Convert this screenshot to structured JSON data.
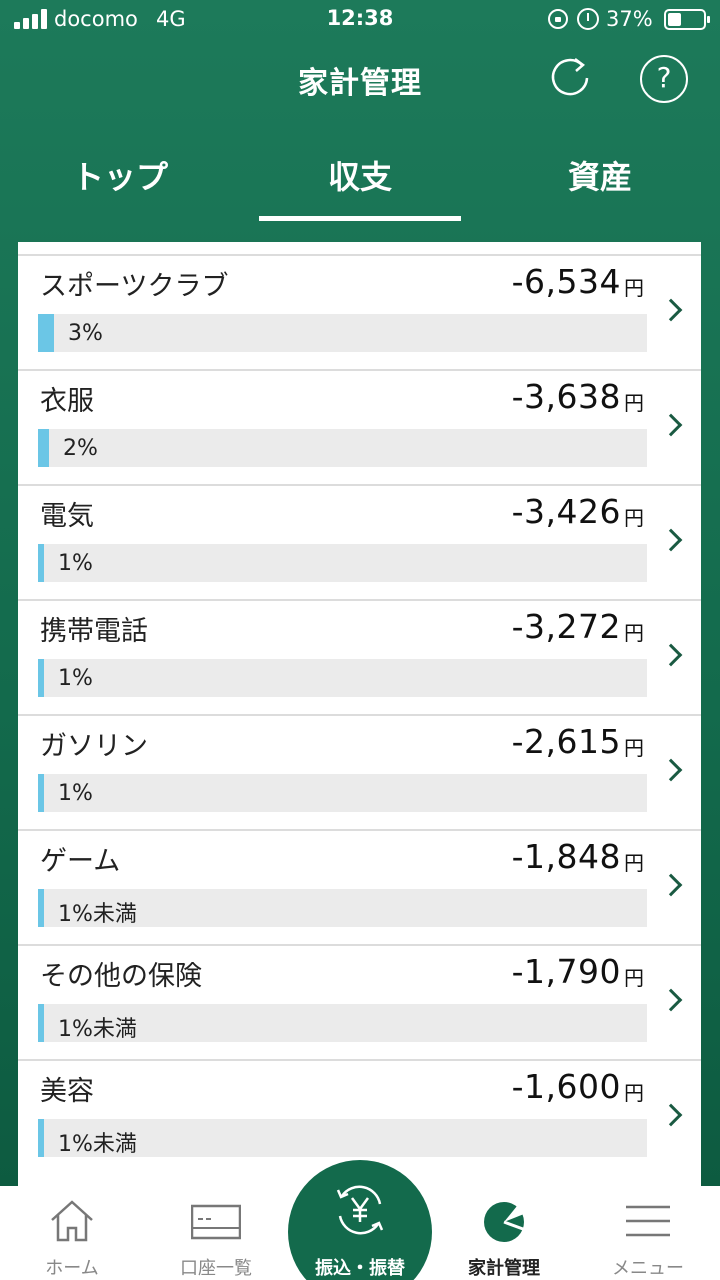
{
  "status_bar": {
    "carrier": "docomo",
    "network": "4G",
    "time": "12:38",
    "battery_percent": "37%",
    "battery_level": 0.37,
    "icons": [
      "signal-icon",
      "lock-icon",
      "alarm-icon",
      "battery-icon"
    ]
  },
  "header": {
    "title": "家計管理",
    "refresh_icon": "refresh-icon",
    "help_icon": "help-icon",
    "help_glyph": "?"
  },
  "tabs": [
    {
      "label": "トップ",
      "selected": false
    },
    {
      "label": "収支",
      "selected": true
    },
    {
      "label": "資産",
      "selected": false
    }
  ],
  "accent_color": "#136a4c",
  "bar_color": "#6bc6e6",
  "currency_unit": "円",
  "items": [
    {
      "name": "スポーツクラブ",
      "amount": "-6,534",
      "percent_label": "3%",
      "share": 0.03
    },
    {
      "name": "衣服",
      "amount": "-3,638",
      "percent_label": "2%",
      "share": 0.02
    },
    {
      "name": "電気",
      "amount": "-3,426",
      "percent_label": "1%",
      "share": 0.01
    },
    {
      "name": "携帯電話",
      "amount": "-3,272",
      "percent_label": "1%",
      "share": 0.01
    },
    {
      "name": "ガソリン",
      "amount": "-2,615",
      "percent_label": "1%",
      "share": 0.01
    },
    {
      "name": "ゲーム",
      "amount": "-1,848",
      "percent_label": "1%未満",
      "share": 0.005
    },
    {
      "name": "その他の保険",
      "amount": "-1,790",
      "percent_label": "1%未満",
      "share": 0.005
    },
    {
      "name": "美容",
      "amount": "-1,600",
      "percent_label": "1%未満",
      "share": 0.005
    }
  ],
  "bottom_nav": [
    {
      "label": "ホーム",
      "icon": "home-icon",
      "active": false
    },
    {
      "label": "口座一覧",
      "icon": "card-icon",
      "active": false
    },
    {
      "label": "振込・振替",
      "icon": "yen-transfer-icon",
      "active": false
    },
    {
      "label": "家計管理",
      "icon": "pie-chart-icon",
      "active": true
    },
    {
      "label": "メニュー",
      "icon": "menu-icon",
      "active": false
    }
  ]
}
